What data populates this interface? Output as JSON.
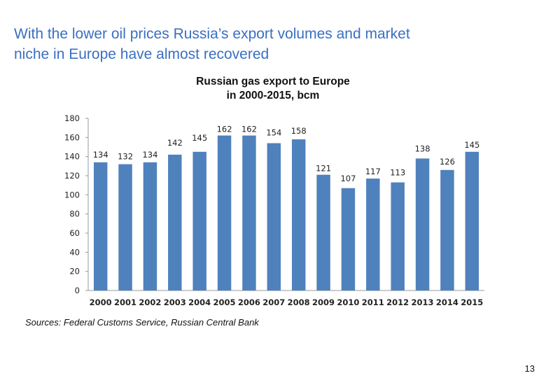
{
  "slide": {
    "title_line1": "With the lower oil prices Russia’s export volumes and market",
    "title_line2": "niche in Europe have almost recovered",
    "source": "Sources: Federal Customs Service, Russian Central Bank",
    "page_number": "13"
  },
  "chart_data": {
    "type": "bar",
    "title_line1": "Russian gas export to Europe",
    "title_line2": "in 2000-2015, bcm",
    "categories": [
      "2000",
      "2001",
      "2002",
      "2003",
      "2004",
      "2005",
      "2006",
      "2007",
      "2008",
      "2009",
      "2010",
      "2011",
      "2012",
      "2013",
      "2014",
      "2015"
    ],
    "values": [
      134,
      132,
      134,
      142,
      145,
      162,
      162,
      154,
      158,
      121,
      107,
      117,
      113,
      138,
      126,
      145
    ],
    "ylim": [
      0,
      180
    ],
    "yticks": [
      0,
      20,
      40,
      60,
      80,
      100,
      120,
      140,
      160,
      180
    ],
    "xlabel": "",
    "ylabel": "",
    "bar_color": "#4f81bd",
    "grid": false,
    "legend": "none"
  }
}
